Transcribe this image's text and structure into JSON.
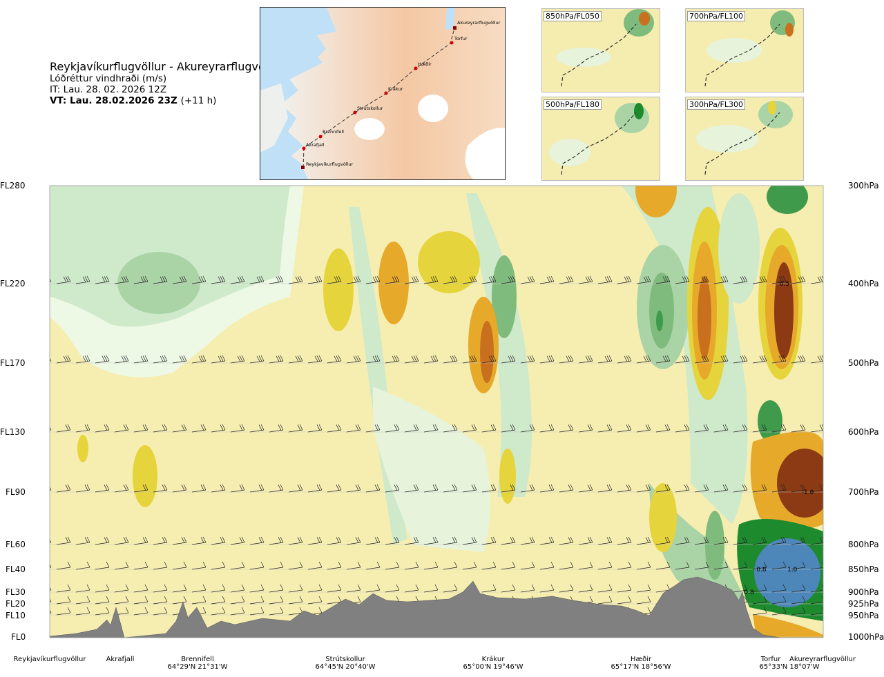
{
  "header": {
    "route": "Reykjavíkurflugvöllur - Akureyrarflugvöllur",
    "variable": "Lóðréttur vindhraði (m/s)",
    "issue_time": "IT: Lau. 28. 02. 2026 12Z",
    "valid_time": "VT: Lau. 28.02.2026 23Z",
    "lead": "(+11 h)"
  },
  "map": {
    "labels": [
      "Akureyrarflugvöllur",
      "Torfur",
      "Hæðir",
      "Krákur",
      "Strútskollur",
      "Brennifell",
      "Akrafjall",
      "Reykjavíkurflugvöllur"
    ]
  },
  "thumbnails": [
    {
      "label": "850hPa/FL050"
    },
    {
      "label": "700hPa/FL100"
    },
    {
      "label": "500hPa/FL180"
    },
    {
      "label": "300hPa/FL300"
    }
  ],
  "chart_data": {
    "type": "heatmap",
    "title": "Lóðréttur vindhraði (m/s)",
    "xlabel": "",
    "ylabel": "",
    "y_left_ticks": [
      "FL280",
      "FL220",
      "FL170",
      "FL130",
      "FL90",
      "FL60",
      "FL40",
      "FL30",
      "FL20",
      "FL10",
      "FL0"
    ],
    "y_right_ticks": [
      "300hPa",
      "400hPa",
      "500hPa",
      "600hPa",
      "700hPa",
      "800hPa",
      "850hPa",
      "900hPa",
      "925hPa",
      "950hPa",
      "1000hPa"
    ],
    "x_waypoints": [
      {
        "name": "Reykjavíkurflugvöllur",
        "coord": ""
      },
      {
        "name": "Akrafjall",
        "coord": ""
      },
      {
        "name": "Brennifell",
        "coord": "64°29'N 21°31'W"
      },
      {
        "name": "Strútskollur",
        "coord": "64°45'N 20°40'W"
      },
      {
        "name": "Krákur",
        "coord": "65°00'N 19°46'W"
      },
      {
        "name": "Hæðir",
        "coord": "65°17'N 18°56'W"
      },
      {
        "name": "Torfur",
        "coord": "65°33'N 18°07'W"
      },
      {
        "name": "Akureyrarflugvöllur",
        "coord": ""
      }
    ],
    "x_range": [
      0,
      1
    ],
    "contour_levels": [
      -1.0,
      -0.8,
      -0.5,
      -0.3,
      -0.2,
      -0.1,
      -0.05,
      0.05,
      0.1,
      0.2,
      0.3,
      0.5,
      0.8,
      1.0
    ],
    "colors_negative": [
      "#8b3a13",
      "#c9701f",
      "#e7a92a",
      "#e6d43c",
      "#efe58c",
      "#f6eeb1",
      "#fdfbe3"
    ],
    "colors_positive": [
      "#edf8e5",
      "#cfe9cb",
      "#abd4a6",
      "#7fbb7c",
      "#3f9a4c",
      "#1e8a2e",
      "#4d86b8"
    ],
    "annotations": [
      {
        "text": "0.5",
        "x": 0.95,
        "y_level": "400hPa"
      },
      {
        "text": "-1.0",
        "x": 0.98,
        "y_level": "700hPa"
      },
      {
        "text": "0.8",
        "x": 0.92,
        "y_level": "850hPa"
      },
      {
        "text": "1.0",
        "x": 0.96,
        "y_level": "850hPa"
      },
      {
        "text": "0.8",
        "x": 0.904,
        "y_level": "900hPa"
      }
    ],
    "grid": true,
    "terrain": true,
    "wind_barbs": true
  }
}
